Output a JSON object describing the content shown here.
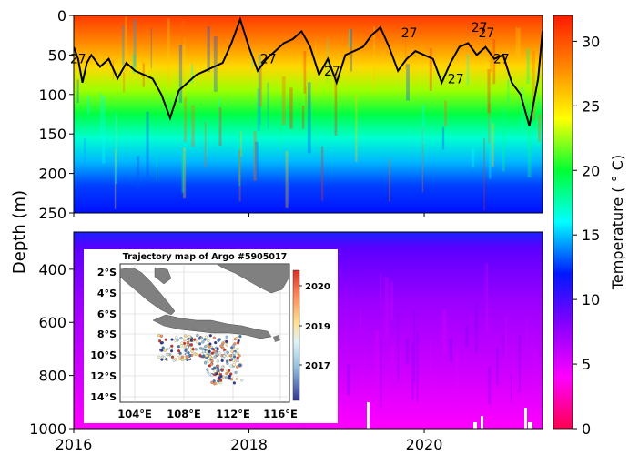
{
  "chart_data": {
    "type": "heatmap",
    "x": {
      "range": [
        2016,
        2021.35
      ],
      "ticks": [
        2016,
        2018,
        2020
      ],
      "tick_labels": [
        "2016",
        "2018",
        "2020"
      ]
    },
    "ylabel": "Depth (m)",
    "colorbar": {
      "label": "Temperature ( ° C)",
      "range": [
        0,
        32
      ],
      "ticks": [
        0,
        5,
        10,
        15,
        20,
        25,
        30
      ],
      "tick_labels": [
        "0",
        "5",
        "10",
        "15",
        "20",
        "25",
        "30"
      ],
      "colors": [
        "#ff0050",
        "#ff00ff",
        "#8800ff",
        "#0018ff",
        "#00ffff",
        "#00ff33",
        "#ffff00",
        "#ff8800",
        "#ff1a00"
      ]
    },
    "panels": [
      {
        "name": "upper",
        "ylim": [
          250,
          0
        ],
        "y_ticks": [
          0,
          50,
          100,
          150,
          200,
          250
        ],
        "y_tick_labels": [
          "0",
          "50",
          "100",
          "150",
          "200",
          "250"
        ],
        "mixed_layer_depth_m": {
          "time": [
            2016.0,
            2016.05,
            2016.1,
            2016.15,
            2016.2,
            2016.3,
            2016.4,
            2016.5,
            2016.6,
            2016.7,
            2016.8,
            2016.9,
            2017.0,
            2017.1,
            2017.2,
            2017.3,
            2017.4,
            2017.5,
            2017.6,
            2017.7,
            2017.8,
            2017.9,
            2018.0,
            2018.1,
            2018.2,
            2018.3,
            2018.4,
            2018.5,
            2018.6,
            2018.7,
            2018.8,
            2018.9,
            2019.0,
            2019.1,
            2019.2,
            2019.3,
            2019.4,
            2019.5,
            2019.6,
            2019.7,
            2019.8,
            2019.9,
            2020.0,
            2020.1,
            2020.2,
            2020.3,
            2020.4,
            2020.5,
            2020.6,
            2020.7,
            2020.8,
            2020.9,
            2021.0,
            2021.1,
            2021.2,
            2021.3,
            2021.35
          ],
          "depth": [
            40,
            55,
            85,
            60,
            50,
            65,
            55,
            80,
            60,
            70,
            75,
            80,
            100,
            130,
            95,
            85,
            75,
            70,
            65,
            60,
            35,
            5,
            40,
            70,
            55,
            45,
            35,
            30,
            20,
            40,
            75,
            55,
            85,
            50,
            45,
            40,
            25,
            15,
            40,
            70,
            55,
            45,
            50,
            55,
            85,
            60,
            40,
            35,
            50,
            40,
            55,
            50,
            85,
            100,
            140,
            80,
            20
          ]
        },
        "isotherm_labels": [
          {
            "text": "27",
            "x": 2016.05,
            "y": 55
          },
          {
            "text": "27",
            "x": 2018.22,
            "y": 55
          },
          {
            "text": "27",
            "x": 2018.95,
            "y": 70
          },
          {
            "text": "27",
            "x": 2019.83,
            "y": 22
          },
          {
            "text": "27",
            "x": 2020.36,
            "y": 80
          },
          {
            "text": "27",
            "x": 2020.63,
            "y": 15
          },
          {
            "text": "27",
            "x": 2020.71,
            "y": 22
          },
          {
            "text": "27",
            "x": 2020.88,
            "y": 55
          }
        ]
      },
      {
        "name": "lower",
        "ylim": [
          1000,
          260
        ],
        "y_ticks": [
          400,
          600,
          800,
          1000
        ],
        "y_tick_labels": [
          "400",
          "600",
          "800",
          "1000"
        ]
      }
    ],
    "inset": {
      "title": "Trajectory map of Argo #5905017",
      "lon_ticks": [
        "104°E",
        "108°E",
        "112°E",
        "116°E"
      ],
      "lat_ticks": [
        "2°S",
        "4°S",
        "6°S",
        "8°S",
        "10°S",
        "12°S",
        "14°S"
      ],
      "colorbar_ticks": [
        "2020",
        "2019",
        "2017"
      ],
      "colorbar_colors": [
        "#d73027",
        "#fc8d59",
        "#fee090",
        "#ffffbf",
        "#e0f3f8",
        "#91bfdb",
        "#4575b4",
        "#313695"
      ]
    }
  }
}
